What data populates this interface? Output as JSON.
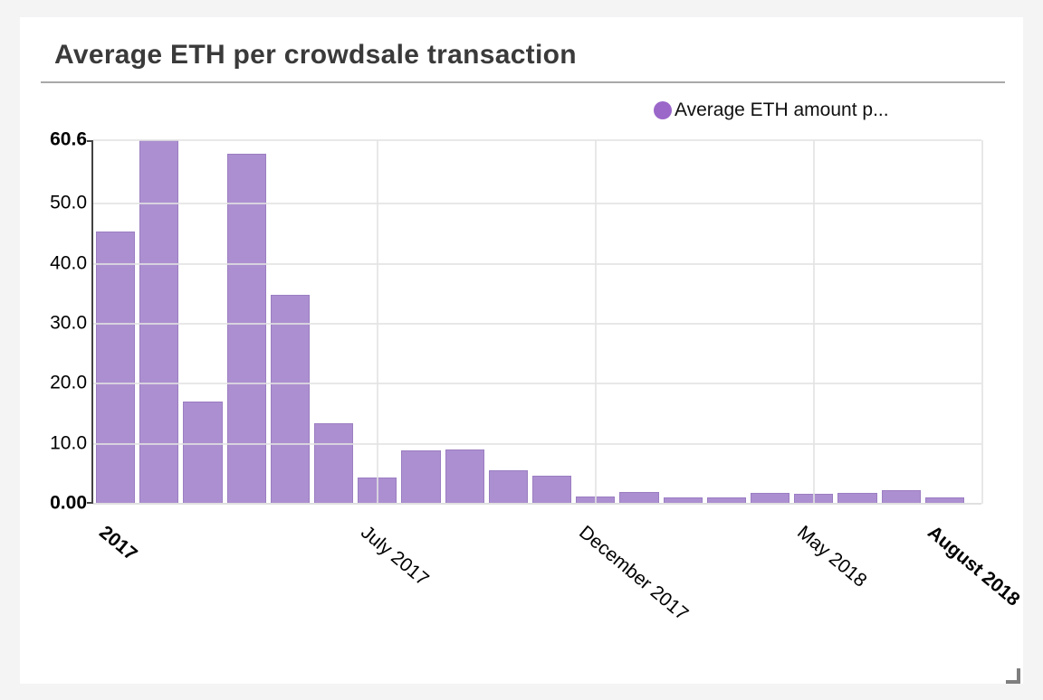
{
  "window": {
    "background_color": "#f4f4f5",
    "card_background_color": "#ffffff"
  },
  "header": {
    "title": "Average ETH per crowdsale transaction",
    "title_color": "#3a3a3a",
    "separator_color": "#a9a9a9"
  },
  "legend": {
    "label": "Average ETH amount p...",
    "marker_color": "#9b67c9",
    "position": "top-right"
  },
  "chart_data": {
    "type": "bar",
    "title": "Average ETH per crowdsale transaction",
    "series": [
      {
        "name": "Average ETH amount p...",
        "fill_color": "#ac8fd0",
        "stroke_color": "#9b7ec2",
        "values": [
          45.3,
          60.6,
          17.0,
          58.3,
          34.8,
          13.4,
          4.4,
          8.9,
          9.0,
          5.6,
          4.7,
          1.2,
          1.9,
          1.1,
          1.0,
          1.8,
          1.6,
          1.8,
          2.3,
          1.0
        ]
      }
    ],
    "x_tick_labels": [
      {
        "text": "2017",
        "bar_index": 0,
        "bold": true,
        "show_gridline": false
      },
      {
        "text": "July 2017",
        "bar_index": 6,
        "bold": false,
        "show_gridline": true
      },
      {
        "text": "December 2017",
        "bar_index": 11,
        "bold": false,
        "show_gridline": true
      },
      {
        "text": "May 2018",
        "bar_index": 16,
        "bold": false,
        "show_gridline": true
      },
      {
        "text": "August 2018",
        "bar_index": 19,
        "bold": true,
        "show_gridline": false
      }
    ],
    "y_ticks": [
      {
        "text": "60.6",
        "value": 60.6,
        "bold": true
      },
      {
        "text": "50.0",
        "value": 50,
        "bold": false
      },
      {
        "text": "40.0",
        "value": 40,
        "bold": false
      },
      {
        "text": "30.0",
        "value": 30,
        "bold": false
      },
      {
        "text": "20.0",
        "value": 20,
        "bold": false
      },
      {
        "text": "10.0",
        "value": 10,
        "bold": false
      },
      {
        "text": "0.00",
        "value": 0,
        "bold": true
      }
    ],
    "ylim": [
      0,
      60.6
    ],
    "xlabel": "",
    "ylabel": "",
    "grid": true,
    "x_label_rotation_deg": 40,
    "legend_position": "top-right",
    "gridline_color": "#e4e4e4",
    "axis_line_color": "#424242"
  }
}
